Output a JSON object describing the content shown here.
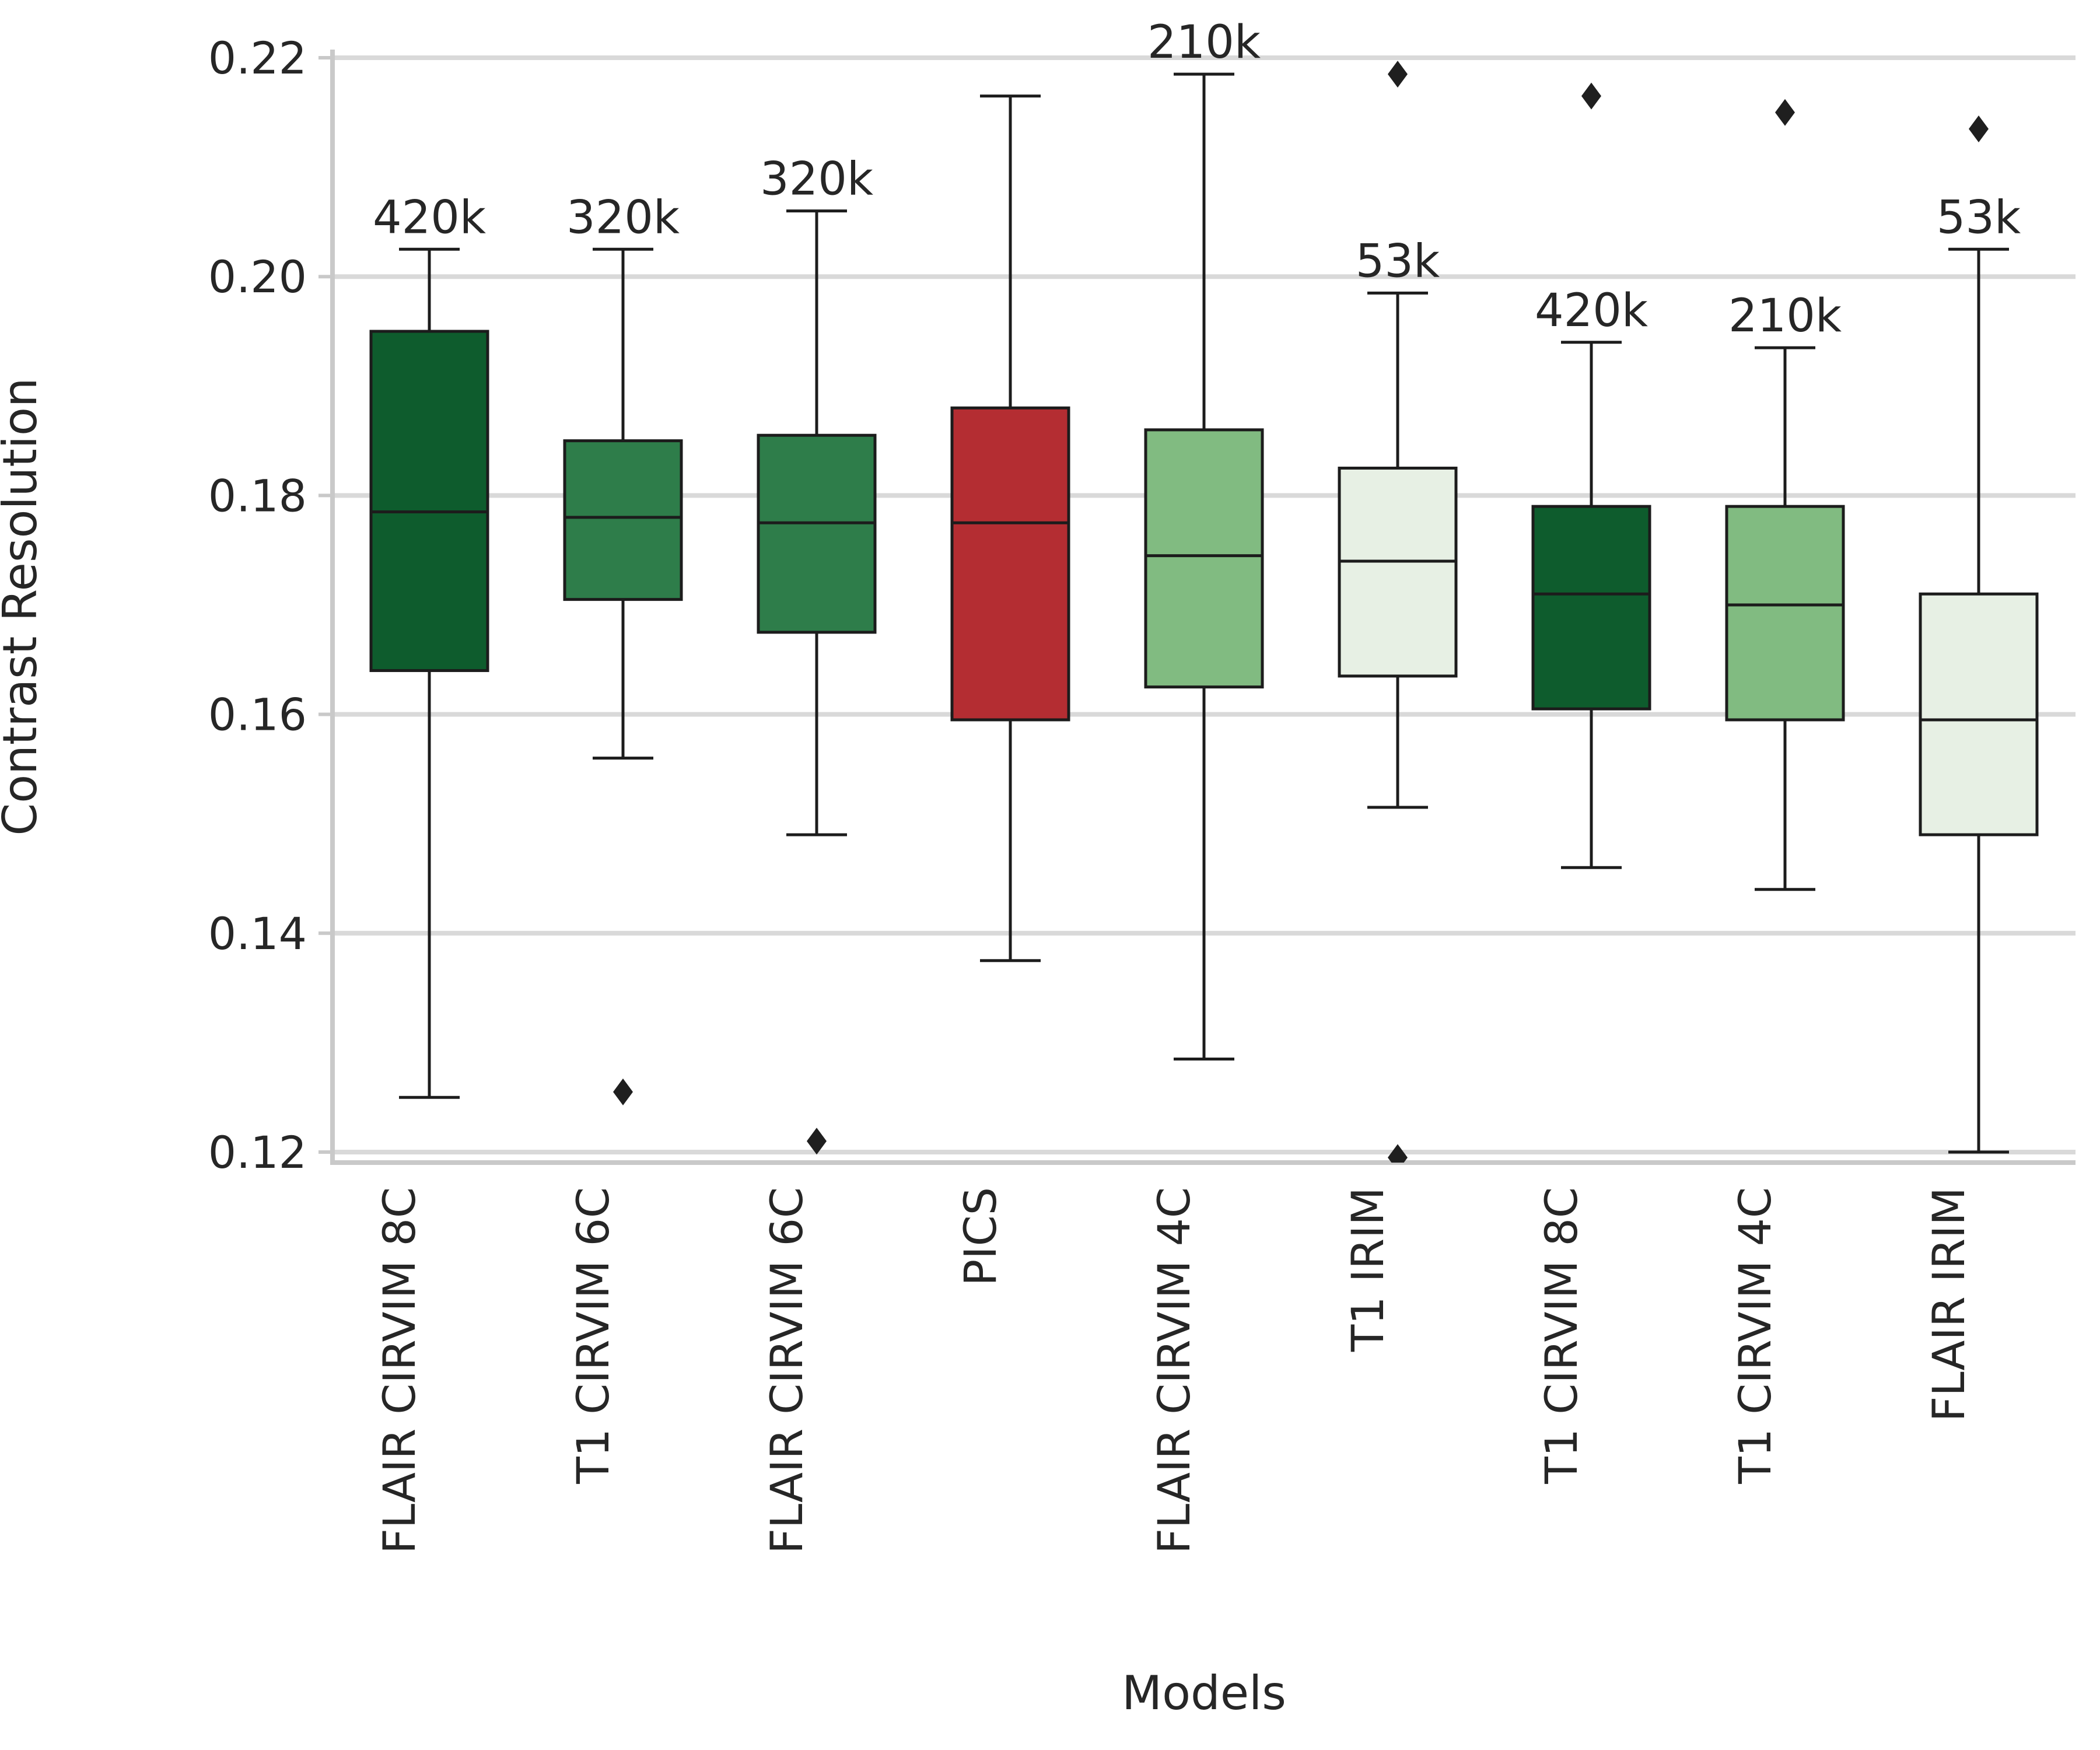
{
  "chart_data": {
    "type": "box",
    "title": "",
    "xlabel": "Models",
    "ylabel": "Contrast Resolution",
    "ylim": [
      0.12,
      0.22
    ],
    "yticks": [
      0.12,
      0.14,
      0.16,
      0.18,
      0.2,
      0.22
    ],
    "ytick_labels": [
      "0.12",
      "0.14",
      "0.16",
      "0.18",
      "0.20",
      "0.22"
    ],
    "grid": "horizontal-only",
    "legend": "none",
    "categories": [
      "FLAIR CIRVIM 8C",
      "T1 CIRVIM 6C",
      "FLAIR CIRVIM 6C",
      "PICS",
      "FLAIR CIRVIM 4C",
      "T1 IRIM",
      "T1 CIRVIM 8C",
      "T1 CIRVIM 4C",
      "FLAIR IRIM"
    ],
    "boxes": [
      {
        "label": "FLAIR CIRVIM 8C",
        "annotation": "420k",
        "color": "#0e5c2d",
        "whisker_low": 0.125,
        "q1": 0.164,
        "median": 0.1785,
        "q3": 0.195,
        "whisker_high": 0.2025,
        "outliers": []
      },
      {
        "label": "T1 CIRVIM 6C",
        "annotation": "320k",
        "color": "#2e7d4a",
        "whisker_low": 0.156,
        "q1": 0.1705,
        "median": 0.178,
        "q3": 0.185,
        "whisker_high": 0.2025,
        "outliers": [
          0.1255
        ]
      },
      {
        "label": "FLAIR CIRVIM 6C",
        "annotation": "320k",
        "color": "#2e7d4a",
        "whisker_low": 0.149,
        "q1": 0.1675,
        "median": 0.1775,
        "q3": 0.1855,
        "whisker_high": 0.206,
        "outliers": [
          0.121
        ]
      },
      {
        "label": "PICS",
        "annotation": "",
        "color": "#b42d32",
        "whisker_low": 0.1375,
        "q1": 0.1595,
        "median": 0.1775,
        "q3": 0.188,
        "whisker_high": 0.2165,
        "outliers": []
      },
      {
        "label": "FLAIR CIRVIM 4C",
        "annotation": "210k",
        "color": "#81bb81",
        "whisker_low": 0.1285,
        "q1": 0.1625,
        "median": 0.1745,
        "q3": 0.186,
        "whisker_high": 0.2185,
        "outliers": []
      },
      {
        "label": "T1 IRIM",
        "annotation": "53k",
        "color": "#e7f0e4",
        "whisker_low": 0.1515,
        "q1": 0.1635,
        "median": 0.174,
        "q3": 0.1825,
        "whisker_high": 0.1985,
        "outliers": [
          0.2185,
          0.1195
        ]
      },
      {
        "label": "T1 CIRVIM 8C",
        "annotation": "420k",
        "color": "#0e5c2d",
        "whisker_low": 0.146,
        "q1": 0.1605,
        "median": 0.171,
        "q3": 0.179,
        "whisker_high": 0.194,
        "outliers": [
          0.2165
        ]
      },
      {
        "label": "T1 CIRVIM 4C",
        "annotation": "210k",
        "color": "#81bb81",
        "whisker_low": 0.144,
        "q1": 0.1595,
        "median": 0.17,
        "q3": 0.179,
        "whisker_high": 0.1935,
        "outliers": [
          0.215
        ]
      },
      {
        "label": "FLAIR IRIM",
        "annotation": "53k",
        "color": "#e7f0e4",
        "whisker_low": 0.12,
        "q1": 0.149,
        "median": 0.1595,
        "q3": 0.171,
        "whisker_high": 0.2025,
        "outliers": [
          0.2135
        ]
      }
    ],
    "style": {
      "grid_color": "#d9d9d9",
      "spine_color": "#c9c9c9",
      "box_edge_color": "#1c1c1c",
      "median_color": "#1c1c1c",
      "whisker_color": "#1c1c1c",
      "outlier_color": "#1f1f1f",
      "text_color": "#262626",
      "background": "#ffffff"
    }
  }
}
